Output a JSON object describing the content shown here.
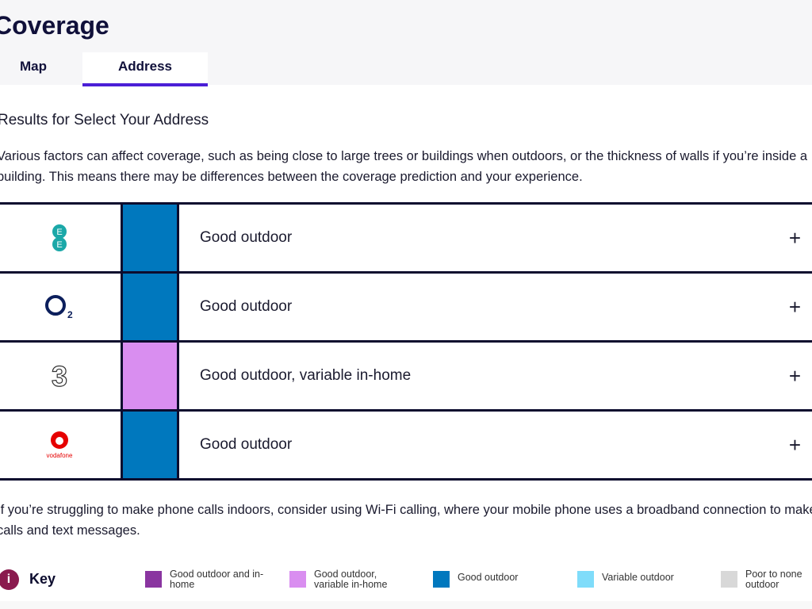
{
  "header": {
    "title": "Coverage",
    "tabs": [
      {
        "label": "Map",
        "active": false
      },
      {
        "label": "Address",
        "active": true
      }
    ]
  },
  "results_heading": "Results for Select Your Address",
  "intro": "Various factors can affect coverage, such as being close to large trees or buildings when outdoors, or the thickness of walls if you’re inside a building. This means there may be differences between the coverage prediction and your experience.",
  "operators": [
    {
      "name": "EE",
      "logo_text": "EE",
      "status": "Good outdoor",
      "color": "#0078be",
      "icon": "plus-icon"
    },
    {
      "name": "O2",
      "logo_text": "O2",
      "status": "Good outdoor",
      "color": "#0078be",
      "icon": "plus-icon"
    },
    {
      "name": "Three",
      "logo_text": "3",
      "status": "Good outdoor, variable in-home",
      "color": "#d98ef0",
      "icon": "plus-icon"
    },
    {
      "name": "Vodafone",
      "logo_text": "vodafone",
      "status": "Good outdoor",
      "color": "#0078be",
      "icon": "plus-icon"
    }
  ],
  "wifi_note": "If you’re struggling to make phone calls indoors, consider using Wi-Fi calling, where your mobile phone uses a broadband connection to make calls and text messages.",
  "key": {
    "title": "Key",
    "icon": "info-icon",
    "items": [
      {
        "label": "Good outdoor and in-home",
        "color": "#8a35a0"
      },
      {
        "label": "Good outdoor, variable in-home",
        "color": "#d98ef0"
      },
      {
        "label": "Good outdoor",
        "color": "#0078be"
      },
      {
        "label": "Variable outdoor",
        "color": "#7fdcfa"
      },
      {
        "label": "Poor to none outdoor",
        "color": "#d8d8d8"
      }
    ]
  }
}
